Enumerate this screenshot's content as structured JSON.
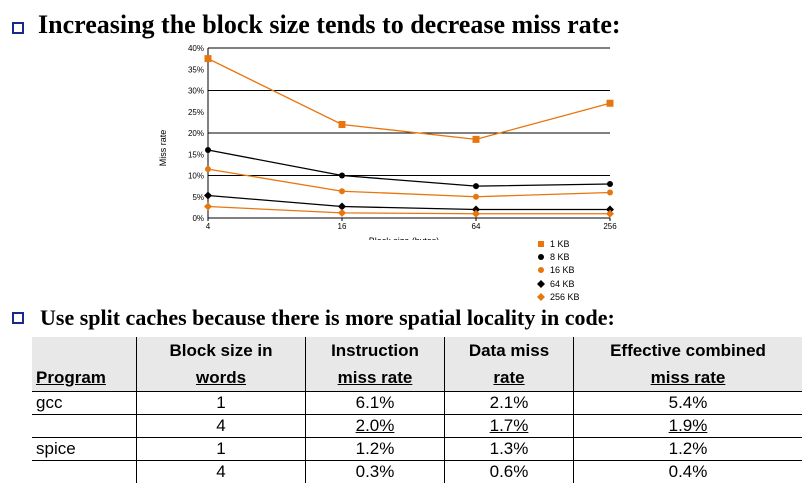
{
  "heading1": "Increasing the block size tends to decrease miss rate:",
  "heading2": "Use split caches because there is more spatial locality in code:",
  "chart_data": {
    "type": "line",
    "xlabel": "Block size (bytes)",
    "ylabel": "Miss rate",
    "x": [
      4,
      16,
      64,
      256
    ],
    "x_tick_labels": [
      "4",
      "16",
      "64",
      "256"
    ],
    "y_tick_labels": [
      "0%",
      "5%",
      "10%",
      "15%",
      "20%",
      "25%",
      "30%",
      "35%",
      "40%"
    ],
    "ylim": [
      0,
      40
    ],
    "grid": true,
    "legend_placement": "bottom-right",
    "series": [
      {
        "name": "1 KB",
        "values": [
          37.5,
          22.0,
          18.5,
          27.0
        ],
        "color": "#e8760f",
        "marker": "square"
      },
      {
        "name": "8 KB",
        "values": [
          16.0,
          10.0,
          7.5,
          8.0
        ],
        "color": "#000000",
        "marker": "circle"
      },
      {
        "name": "16 KB",
        "values": [
          11.5,
          6.3,
          5.0,
          6.0
        ],
        "color": "#e8760f",
        "marker": "circle"
      },
      {
        "name": "64 KB",
        "values": [
          5.3,
          2.7,
          2.0,
          2.0
        ],
        "color": "#000000",
        "marker": "diamond"
      },
      {
        "name": "256 KB",
        "values": [
          2.7,
          1.2,
          1.0,
          1.0
        ],
        "color": "#e8760f",
        "marker": "diamond"
      }
    ]
  },
  "table": {
    "headers": [
      [
        "",
        "Program"
      ],
      [
        "Block size in",
        "words"
      ],
      [
        "Instruction",
        "miss rate"
      ],
      [
        "Data miss",
        "rate"
      ],
      [
        "Effective combined",
        "miss rate"
      ]
    ],
    "rows": [
      [
        "gcc",
        "1",
        "6.1%",
        "2.1%",
        "5.4%"
      ],
      [
        "",
        "4",
        "2.0%",
        "1.7%",
        "1.9%"
      ],
      [
        "spice",
        "1",
        "1.2%",
        "1.3%",
        "1.2%"
      ],
      [
        "",
        "4",
        "0.3%",
        "0.6%",
        "0.4%"
      ]
    ]
  }
}
